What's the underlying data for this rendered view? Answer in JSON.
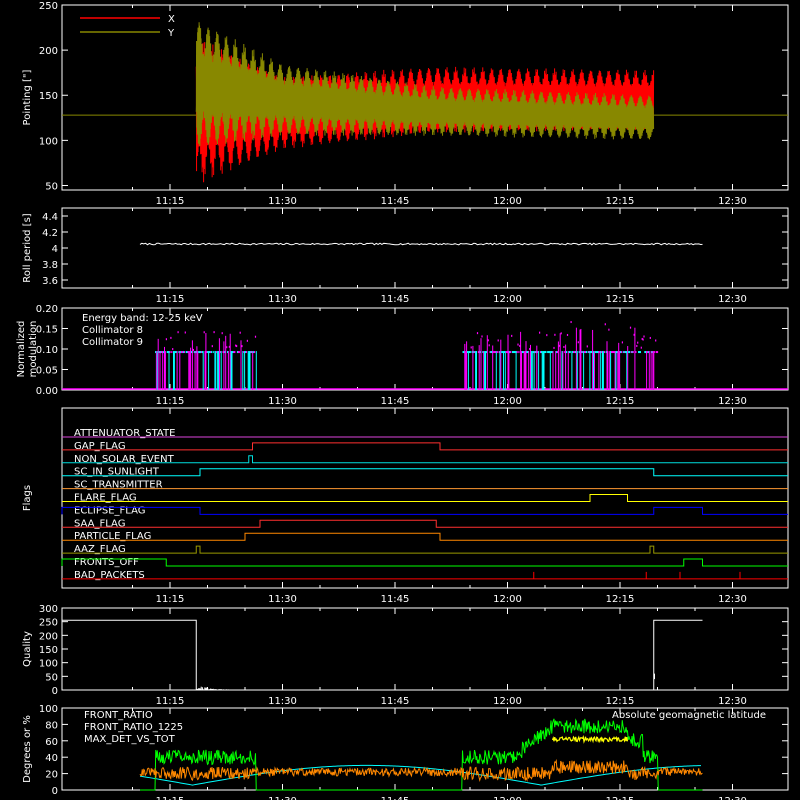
{
  "chart_data": [
    {
      "type": "line",
      "ylabel": "Pointing [\"]",
      "ylim": [
        45,
        250
      ],
      "yticks": [
        50,
        100,
        150,
        200,
        250
      ],
      "xticks": [
        "11:15",
        "11:30",
        "11:45",
        "12:00",
        "12:15",
        "12:30"
      ],
      "x_range_minutes": [
        11.0,
        86.0
      ],
      "series": [
        {
          "name": "X",
          "color": "#ff0000"
        },
        {
          "name": "Y",
          "color": "#888800"
        }
      ],
      "baseline": 128,
      "oscillation_start_min": 18.5,
      "oscillation_end_min": 79.5,
      "x_envelope": [
        [
          18.5,
          50,
          215
        ],
        [
          30,
          90,
          170
        ],
        [
          50,
          108,
          182
        ],
        [
          79.5,
          112,
          178
        ]
      ],
      "y_envelope": [
        [
          18.5,
          90,
          235
        ],
        [
          30,
          105,
          185
        ],
        [
          50,
          105,
          160
        ],
        [
          79.5,
          100,
          150
        ]
      ]
    },
    {
      "type": "line",
      "ylabel": "Roll period [s]",
      "ylim": [
        3.5,
        4.5
      ],
      "yticks": [
        3.6,
        3.8,
        4.0,
        4.2,
        4.4
      ],
      "xticks": [
        "11:15",
        "11:30",
        "11:45",
        "12:00",
        "12:15",
        "12:30"
      ],
      "series": [
        {
          "name": "",
          "color": "#ffffff",
          "values": [
            4.05
          ]
        }
      ]
    },
    {
      "type": "bar",
      "ylabel": "Normalized\nmodulation",
      "ylim": [
        0,
        0.2
      ],
      "yticks": [
        0.0,
        0.05,
        0.1,
        0.15,
        0.2
      ],
      "ytick_labels": [
        "0.00",
        "0.05",
        "0.10",
        "0.15",
        "0.20"
      ],
      "xticks": [
        "11:15",
        "11:30",
        "11:45",
        "12:00",
        "12:15",
        "12:30"
      ],
      "legend": [
        {
          "text": "Energy band: 12-25 keV",
          "color": "#ffffff"
        },
        {
          "text": "Collimator 8",
          "color": "#00ffff"
        },
        {
          "text": "Collimator 9",
          "color": "#ff00ff"
        }
      ],
      "active_windows_min": [
        [
          13,
          26.5
        ],
        [
          54,
          80
        ]
      ],
      "typical_value": 0.095
    },
    {
      "type": "table",
      "ylabel": "Flags",
      "xticks": [
        "11:15",
        "11:30",
        "11:45",
        "12:00",
        "12:15",
        "12:30"
      ],
      "flags": [
        {
          "name": "ATTENUATOR_STATE",
          "color": "#dd44dd",
          "high": []
        },
        {
          "name": "GAP_FLAG",
          "color": "#ff3030",
          "high": [
            [
              26,
              51
            ]
          ]
        },
        {
          "name": "NON_SOLAR_EVENT",
          "color": "#00dddd",
          "high": [
            [
              25.5,
              26
            ]
          ]
        },
        {
          "name": "SC_IN_SUNLIGHT",
          "color": "#00ffff",
          "high": [
            [
              19,
              79.5
            ]
          ]
        },
        {
          "name": "SC_TRANSMITTER",
          "color": "#ff9933",
          "high": []
        },
        {
          "name": "FLARE_FLAG",
          "color": "#ffff00",
          "high": [
            [
              71,
              76
            ]
          ]
        },
        {
          "name": "ECLIPSE_FLAG",
          "color": "#0000ff",
          "high": [
            [
              0,
              19
            ],
            [
              79.5,
              86
            ]
          ]
        },
        {
          "name": "SAA_FLAG",
          "color": "#ff3030",
          "high": [
            [
              27,
              50.5
            ]
          ]
        },
        {
          "name": "PARTICLE_FLAG",
          "color": "#ff8800",
          "high": [
            [
              25,
              51
            ]
          ]
        },
        {
          "name": "AAZ_FLAG",
          "color": "#999900",
          "high": [
            [
              18.5,
              19
            ],
            [
              79,
              79.5
            ]
          ]
        },
        {
          "name": "FRONTS_OFF",
          "color": "#00ff00",
          "high": [
            [
              0,
              14.5
            ],
            [
              83.5,
              86
            ]
          ]
        },
        {
          "name": "BAD_PACKETS",
          "color": "#ff0000",
          "high": [
            [
              63.5,
              63.6
            ],
            [
              78.5,
              78.6
            ],
            [
              83,
              83.1
            ],
            [
              91,
              91.1
            ]
          ]
        }
      ]
    },
    {
      "type": "line",
      "ylabel": "Quality",
      "ylim": [
        0,
        300
      ],
      "yticks": [
        0,
        50,
        100,
        150,
        200,
        250,
        300
      ],
      "xticks": [
        "11:15",
        "11:30",
        "11:45",
        "12:00",
        "12:15",
        "12:30"
      ],
      "series": [
        {
          "name": "",
          "color": "#ffffff",
          "segments": [
            [
              [
                0,
                255
              ],
              [
                18.5,
                255
              ],
              [
                18.5,
                0
              ]
            ],
            [
              [
                79.5,
                0
              ],
              [
                79.5,
                255
              ],
              [
                86,
                255
              ]
            ]
          ]
        }
      ]
    },
    {
      "type": "line",
      "ylabel": "Degrees or %",
      "ylim": [
        0,
        100
      ],
      "yticks": [
        0,
        20,
        40,
        60,
        80,
        100
      ],
      "xticks": [
        "11:15",
        "11:30",
        "11:45",
        "12:00",
        "12:15",
        "12:30"
      ],
      "legend": [
        {
          "text": "FRONT_RATIO",
          "color": "#ffff00"
        },
        {
          "text": "FRONT_RATIO_1225",
          "color": "#00ff00"
        },
        {
          "text": "MAX_DET_VS_TOT",
          "color": "#ff8800"
        },
        {
          "text": "Absolute geomagnetic latitude",
          "color": "#00ffff"
        }
      ],
      "active_windows_min": [
        [
          13,
          26.5
        ],
        [
          54,
          80
        ]
      ]
    }
  ]
}
